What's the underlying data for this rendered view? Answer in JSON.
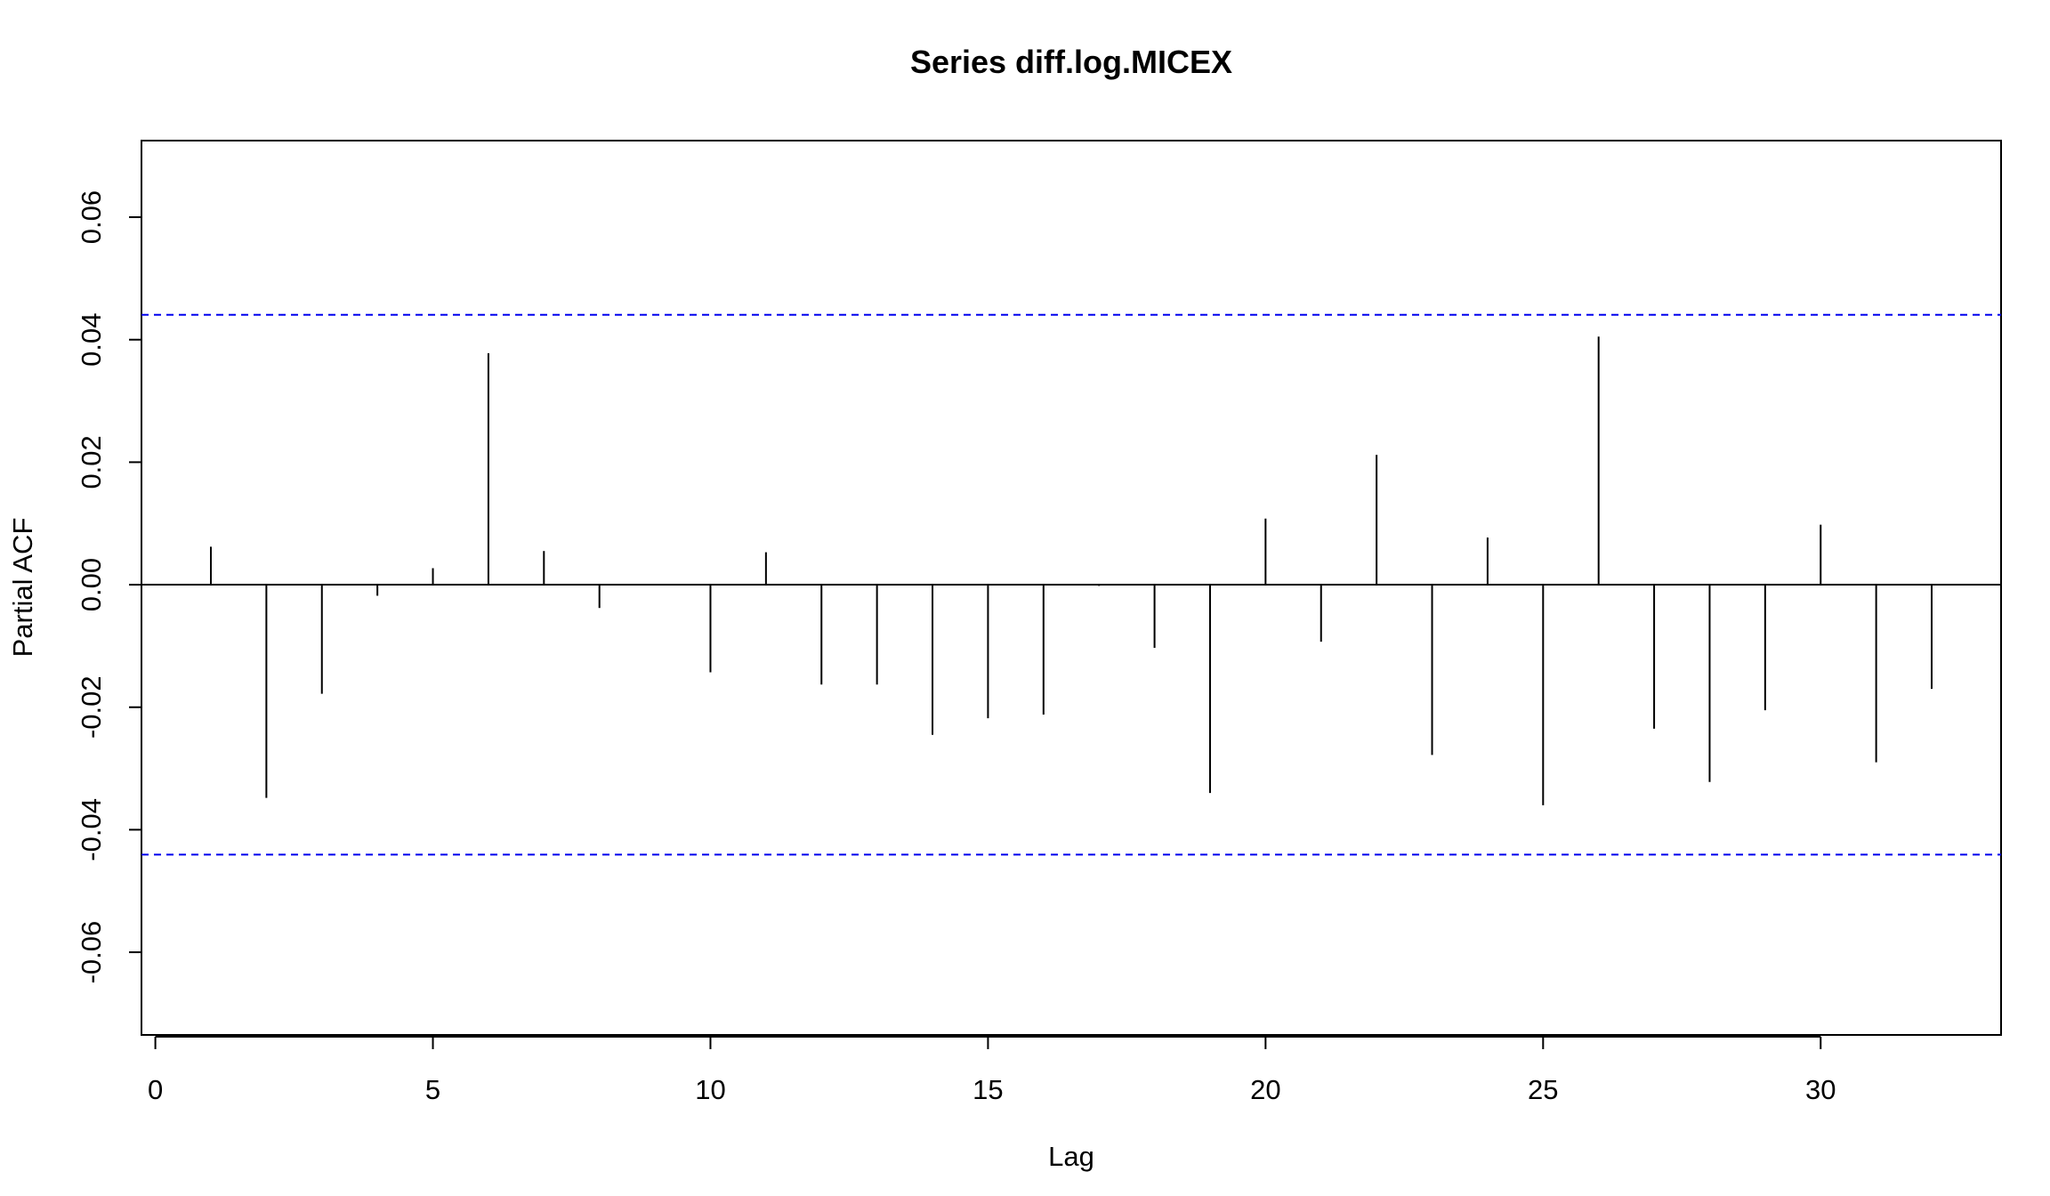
{
  "chart_data": {
    "type": "bar",
    "title": "Series  diff.log.MICEX",
    "xlabel": "Lag",
    "ylabel": "Partial ACF",
    "xlim": [
      -0.25,
      33.25
    ],
    "ylim": [
      -0.0735,
      0.0725
    ],
    "x_ticks": [
      0,
      5,
      10,
      15,
      20,
      25,
      30
    ],
    "y_ticks": [
      -0.06,
      -0.04,
      -0.02,
      0.0,
      0.02,
      0.04,
      0.06
    ],
    "y_tick_labels": [
      "-0.06",
      "-0.04",
      "-0.02",
      "0.00",
      "0.02",
      "0.04",
      "0.06"
    ],
    "x": [
      1,
      2,
      3,
      4,
      5,
      6,
      7,
      8,
      9,
      10,
      11,
      12,
      13,
      14,
      15,
      16,
      17,
      18,
      19,
      20,
      21,
      22,
      23,
      24,
      25,
      26,
      27,
      28,
      29,
      30,
      31,
      32
    ],
    "values": [
      0.0062,
      -0.0348,
      -0.0178,
      -0.0018,
      0.0027,
      0.0378,
      0.0055,
      -0.0038,
      0.0,
      -0.0143,
      0.0053,
      -0.0163,
      -0.0163,
      -0.0245,
      -0.0218,
      -0.0212,
      -0.0002,
      -0.0103,
      -0.034,
      0.0108,
      -0.0093,
      0.0212,
      -0.0278,
      0.0077,
      -0.036,
      0.0405,
      -0.0235,
      -0.0322,
      -0.0205,
      0.0098,
      -0.029,
      -0.017
    ],
    "confidence_bound": 0.04406,
    "confidence_color": "#0000ee",
    "grid": false,
    "legend": "none"
  }
}
